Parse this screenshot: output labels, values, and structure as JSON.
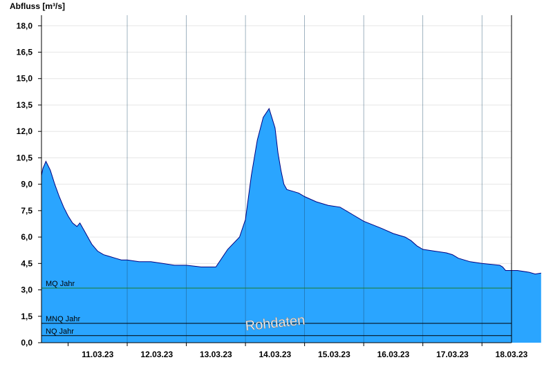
{
  "chart_data": {
    "type": "area",
    "ylabel": "Abfluss [m³/s]",
    "ylim": [
      0,
      18.6
    ],
    "yticks": [
      0,
      1.5,
      3,
      4.5,
      6,
      7.5,
      9,
      10.5,
      12,
      13.5,
      15,
      16.5,
      18
    ],
    "ytick_labels": [
      "0,0",
      "1,5",
      "3,0",
      "4,5",
      "6,0",
      "7,5",
      "9,0",
      "10,5",
      "12,0",
      "13,5",
      "15,0",
      "16,5",
      "18,0"
    ],
    "xlim_days": [
      10.55,
      18.5
    ],
    "x_categories": [
      "11.03.23",
      "12.03.23",
      "13.03.23",
      "14.03.23",
      "15.03.23",
      "16.03.23",
      "17.03.23",
      "18.03.23"
    ],
    "grid": true,
    "area_color": "#2aa5ff",
    "line_color": "#000080",
    "reference_lines": [
      {
        "name": "MQ Jahr",
        "value": 3.1,
        "color": "#1a7a2a"
      },
      {
        "name": "MNQ Jahr",
        "value": 1.1,
        "color": "#000000"
      },
      {
        "name": "NQ Jahr",
        "value": 0.4,
        "color": "#000000"
      }
    ],
    "annotation": "Rohdaten",
    "series": [
      {
        "x": [
          "10.03.23 13:12",
          "10.03.23 13:48",
          "10.03.23 14:24",
          "10.03.23 15:00",
          "10.03.23 16:48",
          "10.03.23 18:36",
          "10.03.23 20:24",
          "10.03.23 22:12",
          "11.03.23 00:00",
          "11.03.23 01:48",
          "11.03.23 03:36",
          "11.03.23 04:48",
          "11.03.23 06:00",
          "11.03.23 07:12",
          "11.03.23 08:24",
          "11.03.23 09:36",
          "11.03.23 10:48",
          "11.03.23 12:00",
          "11.03.23 14:24",
          "11.03.23 16:48",
          "11.03.23 19:12",
          "11.03.23 21:36",
          "12.03.23 00:00",
          "12.03.23 04:48",
          "12.03.23 09:36",
          "12.03.23 14:24",
          "12.03.23 19:12",
          "13.03.23 00:00",
          "13.03.23 06:00",
          "13.03.23 12:00",
          "13.03.23 16:48",
          "13.03.23 21:36",
          "14.03.23 00:00",
          "14.03.23 02:24",
          "14.03.23 04:48",
          "14.03.23 07:12",
          "14.03.23 09:36",
          "14.03.23 12:00",
          "14.03.23 13:12",
          "14.03.23 14:24",
          "14.03.23 15:36",
          "14.03.23 16:48",
          "14.03.23 19:12",
          "14.03.23 21:36",
          "15.03.23 00:00",
          "15.03.23 04:48",
          "15.03.23 09:36",
          "15.03.23 14:24",
          "15.03.23 19:12",
          "16.03.23 00:00",
          "16.03.23 03:36",
          "16.03.23 07:12",
          "16.03.23 12:00",
          "16.03.23 16:48",
          "16.03.23 19:12",
          "16.03.23 21:36",
          "17.03.23 00:00",
          "17.03.23 04:48",
          "17.03.23 09:36",
          "17.03.23 12:00",
          "17.03.23 13:12",
          "17.03.23 14:24",
          "17.03.23 19:12",
          "18.03.23 00:00",
          "18.03.23 07:12",
          "18.03.23 08:24",
          "18.03.23 09:36",
          "18.03.23 14:24",
          "18.03.23 19:12",
          "18.03.23 21:36",
          "19.03.23 00:00"
        ],
        "y": [
          9.5,
          9.9,
          10.1,
          10.3,
          9.8,
          9.0,
          8.3,
          7.7,
          7.2,
          6.8,
          6.6,
          6.8,
          6.5,
          6.2,
          5.9,
          5.6,
          5.4,
          5.2,
          5.0,
          4.9,
          4.8,
          4.7,
          4.7,
          4.6,
          4.6,
          4.5,
          4.4,
          4.4,
          4.3,
          4.3,
          5.3,
          6.0,
          7.0,
          9.5,
          11.5,
          12.8,
          13.3,
          12.2,
          10.8,
          9.8,
          9.0,
          8.7,
          8.6,
          8.5,
          8.3,
          8.0,
          7.8,
          7.7,
          7.3,
          6.9,
          6.7,
          6.5,
          6.2,
          6.0,
          5.8,
          5.5,
          5.3,
          5.2,
          5.1,
          5.0,
          4.9,
          4.8,
          4.6,
          4.5,
          4.4,
          4.3,
          4.1,
          4.1,
          4.0,
          3.9,
          3.95
        ]
      }
    ]
  }
}
